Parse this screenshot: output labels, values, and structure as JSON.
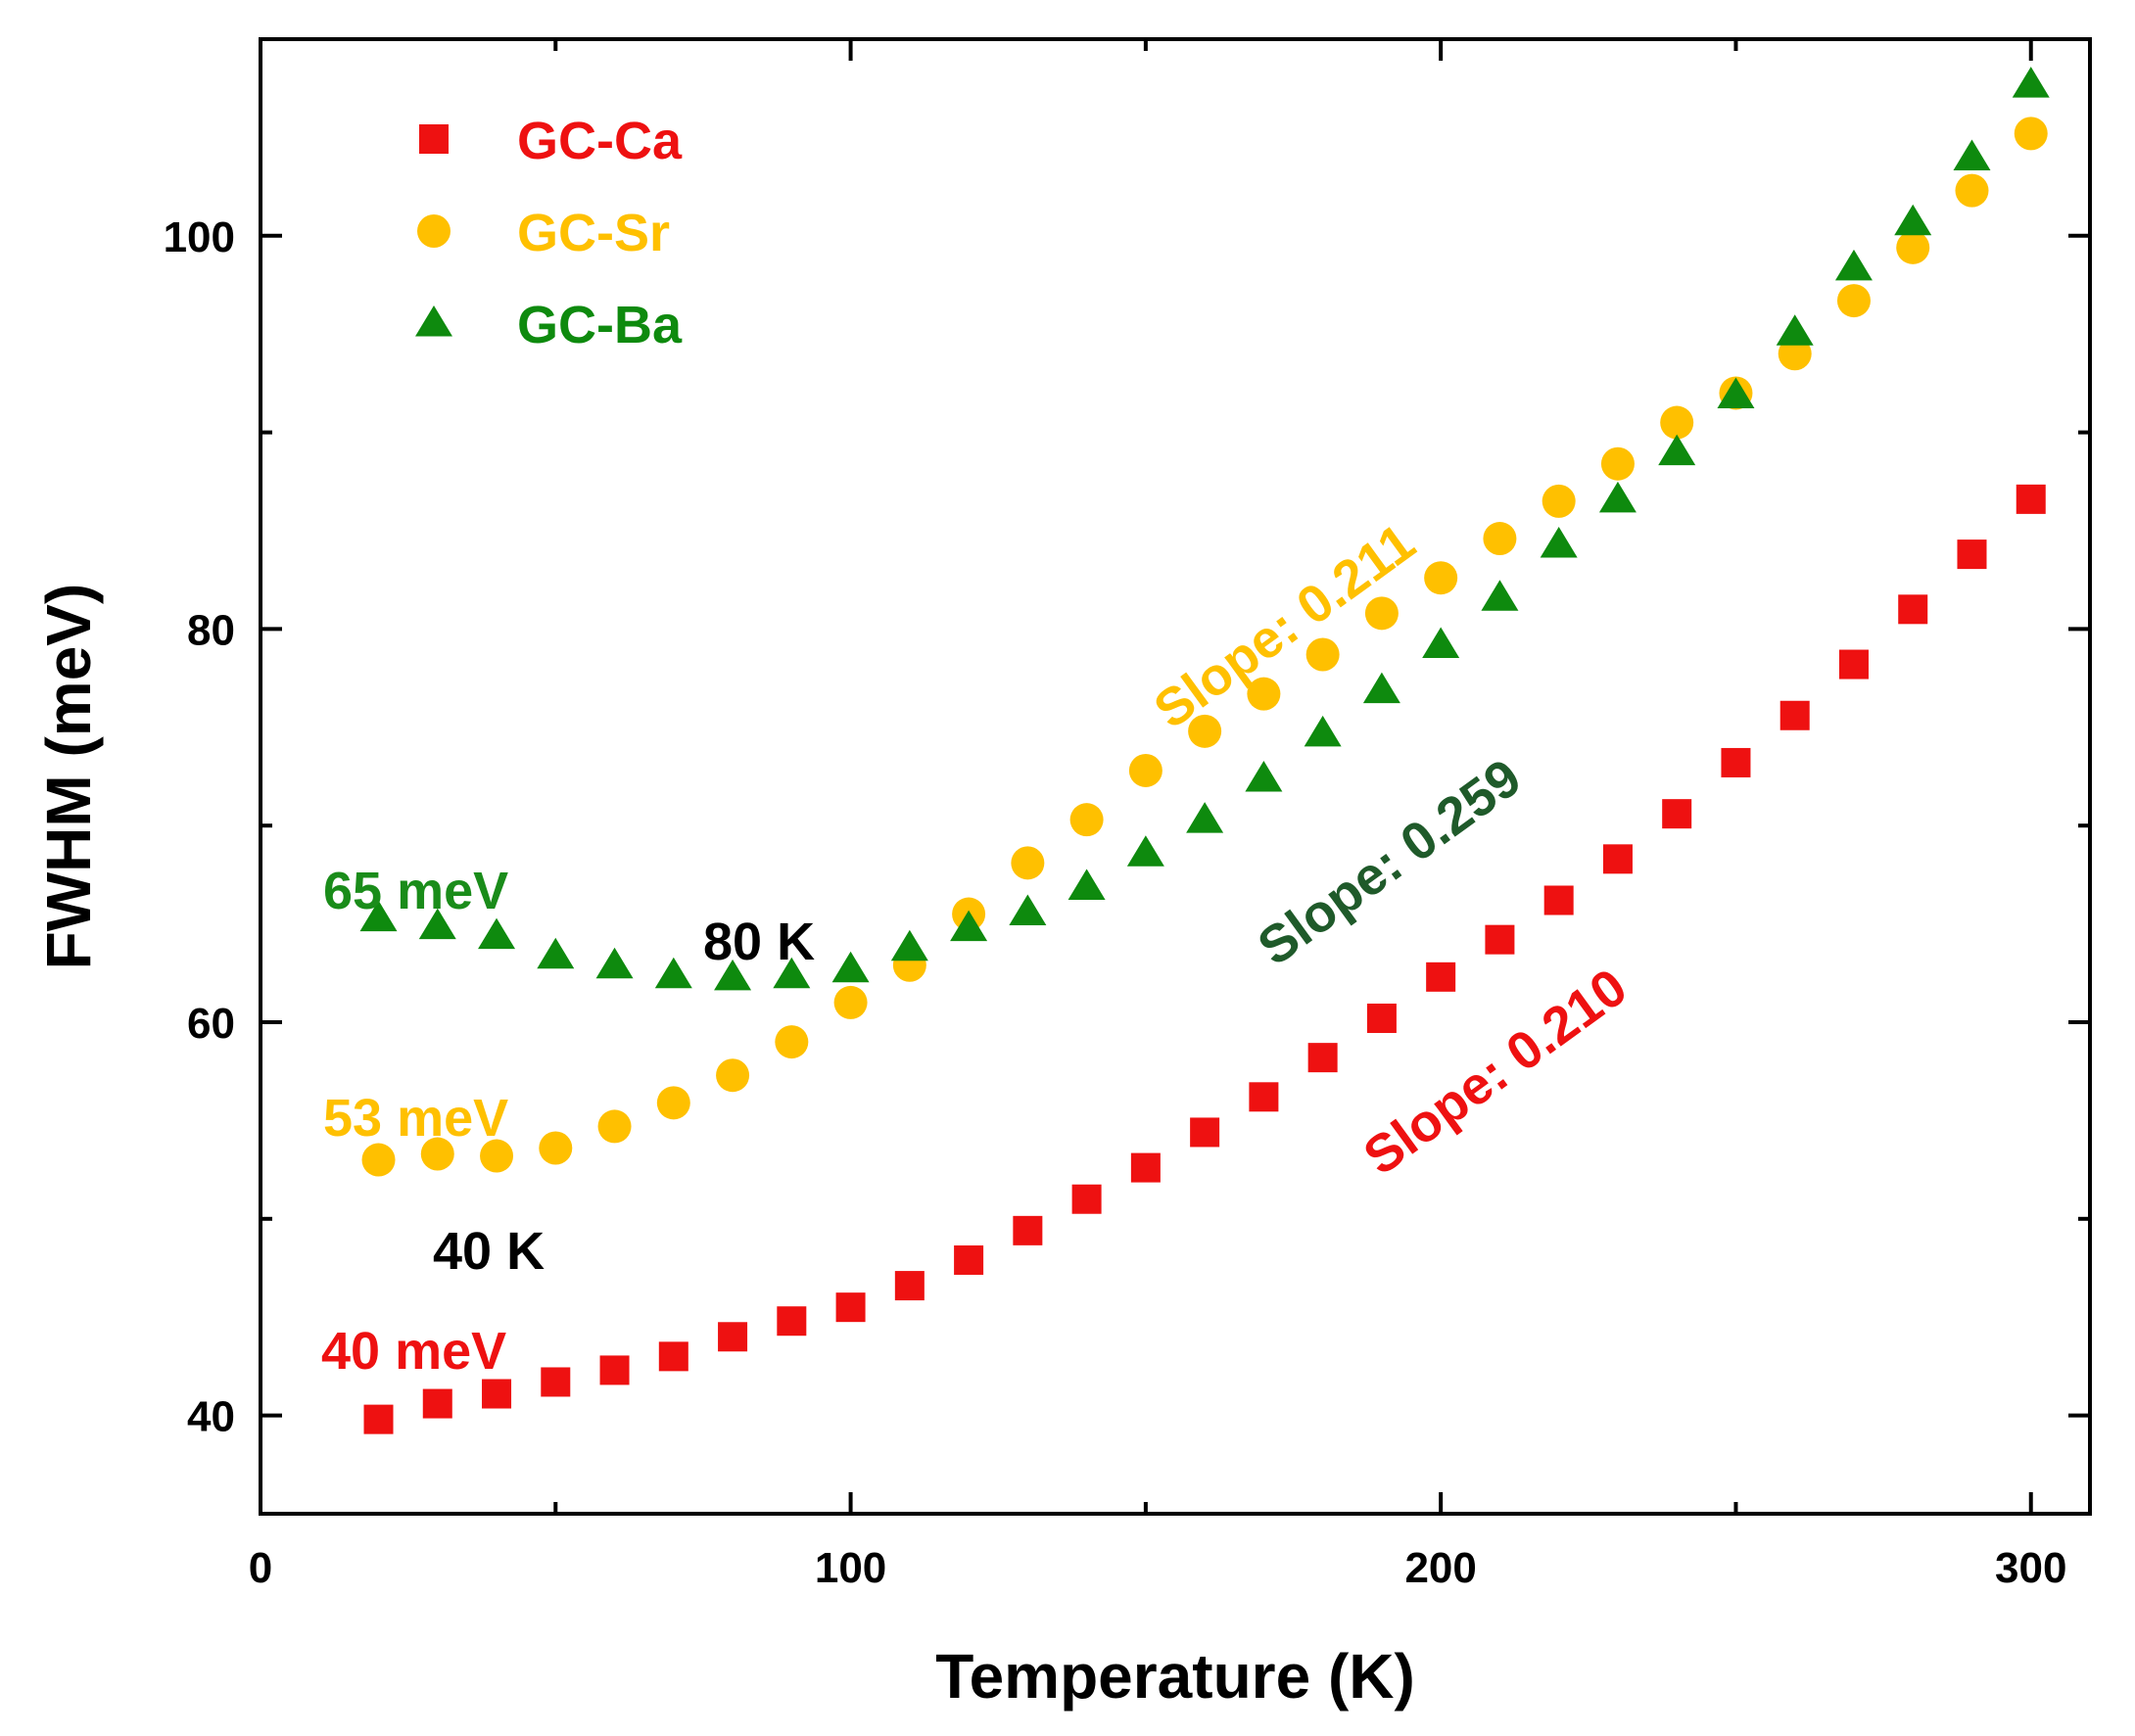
{
  "chart_data": {
    "type": "scatter",
    "title": "",
    "xlabel": "Temperature (K)",
    "ylabel": "FWHM (meV)",
    "xlim": [
      0,
      310
    ],
    "ylim": [
      35,
      110
    ],
    "xticks": [
      0,
      100,
      200,
      300
    ],
    "yticks": [
      40,
      60,
      80,
      100
    ],
    "grid": false,
    "legend_position": "top-left",
    "x": [
      20,
      30,
      40,
      50,
      60,
      70,
      80,
      90,
      100,
      110,
      120,
      130,
      140,
      150,
      160,
      170,
      180,
      190,
      200,
      210,
      220,
      230,
      240,
      250,
      260,
      270,
      280,
      290,
      300
    ],
    "series": [
      {
        "name": "GC-Ca",
        "marker": "square",
        "color": "#ee1111",
        "values": [
          39.8,
          40.6,
          41.1,
          41.7,
          42.3,
          43.0,
          44.0,
          44.8,
          45.5,
          46.6,
          47.9,
          49.4,
          51.0,
          52.6,
          54.4,
          56.2,
          58.2,
          60.2,
          62.3,
          64.2,
          66.2,
          68.3,
          70.6,
          73.2,
          75.6,
          78.2,
          81.0,
          83.8,
          86.6
        ]
      },
      {
        "name": "GC-Sr",
        "marker": "circle",
        "color": "#ffc000",
        "values": [
          53.0,
          53.3,
          53.2,
          53.6,
          54.7,
          55.9,
          57.3,
          59.0,
          61.0,
          62.9,
          65.5,
          68.1,
          70.3,
          72.8,
          74.8,
          76.7,
          78.7,
          80.8,
          82.6,
          84.6,
          86.5,
          88.4,
          90.5,
          92.0,
          94.0,
          96.7,
          99.4,
          102.3,
          105.2
        ]
      },
      {
        "name": "GC-Ba",
        "marker": "triangle",
        "color": "#0e8a0e",
        "values": [
          65.3,
          64.9,
          64.4,
          63.4,
          62.9,
          62.4,
          62.3,
          62.4,
          62.7,
          63.8,
          64.8,
          65.6,
          66.9,
          68.6,
          70.3,
          72.4,
          74.7,
          76.9,
          79.2,
          81.6,
          84.3,
          86.6,
          89.0,
          91.9,
          95.1,
          98.4,
          100.7,
          104.0,
          107.7
        ]
      }
    ],
    "annotations": [
      {
        "text": "65 meV",
        "color": "#1a8c1a"
      },
      {
        "text": "53 meV",
        "color": "#ffc000"
      },
      {
        "text": "40 meV",
        "color": "#ee1111"
      },
      {
        "text": "80 K",
        "color": "#000000"
      },
      {
        "text": "40 K",
        "color": "#000000"
      },
      {
        "text": "Slope: 0.211",
        "color": "#ffc000"
      },
      {
        "text": "Slope: 0.259",
        "color": "#1f5a2a"
      },
      {
        "text": "Slope: 0.210",
        "color": "#ee1111"
      }
    ]
  }
}
